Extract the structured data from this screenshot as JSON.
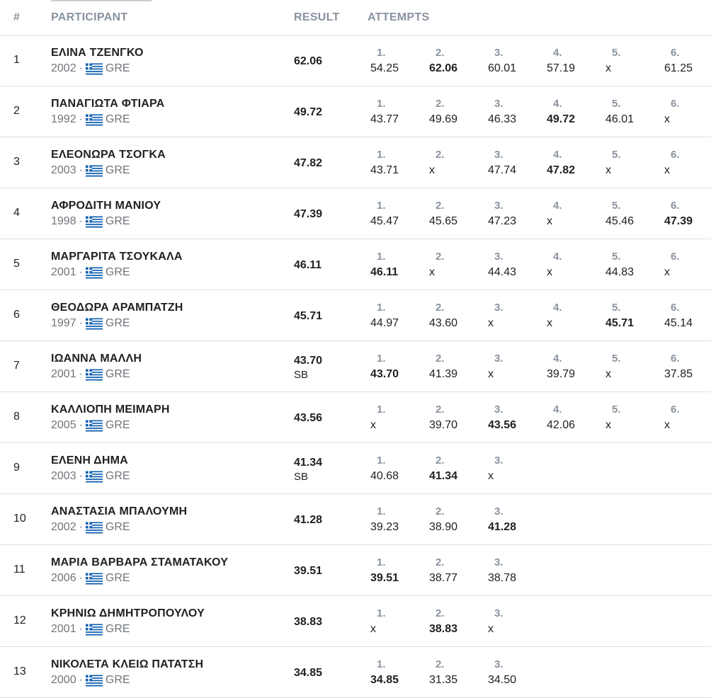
{
  "header": {
    "rank": "#",
    "participant": "PARTICIPANT",
    "result": "RESULT",
    "attempts": "ATTEMPTS"
  },
  "flag_icon": "greece-flag-icon",
  "colors": {
    "flag_blue": "#0d5eaf",
    "header_text": "#8a939e",
    "divider": "#dcdfe3"
  },
  "rows": [
    {
      "rank": "1",
      "name": "ΕΛΙΝΑ ΤΖΕΝΓΚΟ",
      "year": "2002",
      "sep": "·",
      "country": "GRE",
      "result": "62.06",
      "note": "",
      "attempts": [
        {
          "n": "1.",
          "v": "54.25",
          "best": false
        },
        {
          "n": "2.",
          "v": "62.06",
          "best": true
        },
        {
          "n": "3.",
          "v": "60.01",
          "best": false
        },
        {
          "n": "4.",
          "v": "57.19",
          "best": false
        },
        {
          "n": "5.",
          "v": "x",
          "best": false
        },
        {
          "n": "6.",
          "v": "61.25",
          "best": false
        }
      ]
    },
    {
      "rank": "2",
      "name": "ΠΑΝΑΓΙΩΤΑ ΦΤΙΑΡΑ",
      "year": "1992",
      "sep": "·",
      "country": "GRE",
      "result": "49.72",
      "note": "",
      "attempts": [
        {
          "n": "1.",
          "v": "43.77",
          "best": false
        },
        {
          "n": "2.",
          "v": "49.69",
          "best": false
        },
        {
          "n": "3.",
          "v": "46.33",
          "best": false
        },
        {
          "n": "4.",
          "v": "49.72",
          "best": true
        },
        {
          "n": "5.",
          "v": "46.01",
          "best": false
        },
        {
          "n": "6.",
          "v": "x",
          "best": false
        }
      ]
    },
    {
      "rank": "3",
      "name": "ΕΛΕΟΝΩΡΑ ΤΣΟΓΚΑ",
      "year": "2003",
      "sep": "·",
      "country": "GRE",
      "result": "47.82",
      "note": "",
      "attempts": [
        {
          "n": "1.",
          "v": "43.71",
          "best": false
        },
        {
          "n": "2.",
          "v": "x",
          "best": false
        },
        {
          "n": "3.",
          "v": "47.74",
          "best": false
        },
        {
          "n": "4.",
          "v": "47.82",
          "best": true
        },
        {
          "n": "5.",
          "v": "x",
          "best": false
        },
        {
          "n": "6.",
          "v": "x",
          "best": false
        }
      ]
    },
    {
      "rank": "4",
      "name": "ΑΦΡΟΔΙΤΗ ΜΑΝΙΟΥ",
      "year": "1998",
      "sep": "·",
      "country": "GRE",
      "result": "47.39",
      "note": "",
      "attempts": [
        {
          "n": "1.",
          "v": "45.47",
          "best": false
        },
        {
          "n": "2.",
          "v": "45.65",
          "best": false
        },
        {
          "n": "3.",
          "v": "47.23",
          "best": false
        },
        {
          "n": "4.",
          "v": "x",
          "best": false
        },
        {
          "n": "5.",
          "v": "45.46",
          "best": false
        },
        {
          "n": "6.",
          "v": "47.39",
          "best": true
        }
      ]
    },
    {
      "rank": "5",
      "name": "ΜΑΡΓΑΡΙΤΑ ΤΣΟΥΚΑΛΑ",
      "year": "2001",
      "sep": "·",
      "country": "GRE",
      "result": "46.11",
      "note": "",
      "attempts": [
        {
          "n": "1.",
          "v": "46.11",
          "best": true
        },
        {
          "n": "2.",
          "v": "x",
          "best": false
        },
        {
          "n": "3.",
          "v": "44.43",
          "best": false
        },
        {
          "n": "4.",
          "v": "x",
          "best": false
        },
        {
          "n": "5.",
          "v": "44.83",
          "best": false
        },
        {
          "n": "6.",
          "v": "x",
          "best": false
        }
      ]
    },
    {
      "rank": "6",
      "name": "ΘΕΟΔΩΡΑ ΑΡΑΜΠΑΤΖΗ",
      "year": "1997",
      "sep": "·",
      "country": "GRE",
      "result": "45.71",
      "note": "",
      "attempts": [
        {
          "n": "1.",
          "v": "44.97",
          "best": false
        },
        {
          "n": "2.",
          "v": "43.60",
          "best": false
        },
        {
          "n": "3.",
          "v": "x",
          "best": false
        },
        {
          "n": "4.",
          "v": "x",
          "best": false
        },
        {
          "n": "5.",
          "v": "45.71",
          "best": true
        },
        {
          "n": "6.",
          "v": "45.14",
          "best": false
        }
      ]
    },
    {
      "rank": "7",
      "name": "ΙΩΑΝΝΑ ΜΑΛΛΗ",
      "year": "2001",
      "sep": "·",
      "country": "GRE",
      "result": "43.70",
      "note": "SB",
      "attempts": [
        {
          "n": "1.",
          "v": "43.70",
          "best": true
        },
        {
          "n": "2.",
          "v": "41.39",
          "best": false
        },
        {
          "n": "3.",
          "v": "x",
          "best": false
        },
        {
          "n": "4.",
          "v": "39.79",
          "best": false
        },
        {
          "n": "5.",
          "v": "x",
          "best": false
        },
        {
          "n": "6.",
          "v": "37.85",
          "best": false
        }
      ]
    },
    {
      "rank": "8",
      "name": "ΚΑΛΛΙΟΠΗ ΜΕΙΜΑΡΗ",
      "year": "2005",
      "sep": "·",
      "country": "GRE",
      "result": "43.56",
      "note": "",
      "attempts": [
        {
          "n": "1.",
          "v": "x",
          "best": false
        },
        {
          "n": "2.",
          "v": "39.70",
          "best": false
        },
        {
          "n": "3.",
          "v": "43.56",
          "best": true
        },
        {
          "n": "4.",
          "v": "42.06",
          "best": false
        },
        {
          "n": "5.",
          "v": "x",
          "best": false
        },
        {
          "n": "6.",
          "v": "x",
          "best": false
        }
      ]
    },
    {
      "rank": "9",
      "name": "ΕΛΕΝΗ ΔΗΜΑ",
      "year": "2003",
      "sep": "·",
      "country": "GRE",
      "result": "41.34",
      "note": "SB",
      "attempts": [
        {
          "n": "1.",
          "v": "40.68",
          "best": false
        },
        {
          "n": "2.",
          "v": "41.34",
          "best": true
        },
        {
          "n": "3.",
          "v": "x",
          "best": false
        }
      ]
    },
    {
      "rank": "10",
      "name": "ΑΝΑΣΤΑΣΙΑ ΜΠΑΛΟΥΜΗ",
      "year": "2002",
      "sep": "·",
      "country": "GRE",
      "result": "41.28",
      "note": "",
      "attempts": [
        {
          "n": "1.",
          "v": "39.23",
          "best": false
        },
        {
          "n": "2.",
          "v": "38.90",
          "best": false
        },
        {
          "n": "3.",
          "v": "41.28",
          "best": true
        }
      ]
    },
    {
      "rank": "11",
      "name": "ΜΑΡΙΑ ΒΑΡΒΑΡΑ ΣΤΑΜΑΤΑΚΟΥ",
      "year": "2006",
      "sep": "·",
      "country": "GRE",
      "result": "39.51",
      "note": "",
      "attempts": [
        {
          "n": "1.",
          "v": "39.51",
          "best": true
        },
        {
          "n": "2.",
          "v": "38.77",
          "best": false
        },
        {
          "n": "3.",
          "v": "38.78",
          "best": false
        }
      ]
    },
    {
      "rank": "12",
      "name": "ΚΡΗΝΙΩ ΔΗΜΗΤΡΟΠΟΥΛΟΥ",
      "year": "2001",
      "sep": "·",
      "country": "GRE",
      "result": "38.83",
      "note": "",
      "attempts": [
        {
          "n": "1.",
          "v": "x",
          "best": false
        },
        {
          "n": "2.",
          "v": "38.83",
          "best": true
        },
        {
          "n": "3.",
          "v": "x",
          "best": false
        }
      ]
    },
    {
      "rank": "13",
      "name": "ΝΙΚΟΛΕΤΑ ΚΛΕΙΩ ΠΑΤΑΤΣΗ",
      "year": "2000",
      "sep": "·",
      "country": "GRE",
      "result": "34.85",
      "note": "",
      "attempts": [
        {
          "n": "1.",
          "v": "34.85",
          "best": true
        },
        {
          "n": "2.",
          "v": "31.35",
          "best": false
        },
        {
          "n": "3.",
          "v": "34.50",
          "best": false
        }
      ]
    }
  ]
}
